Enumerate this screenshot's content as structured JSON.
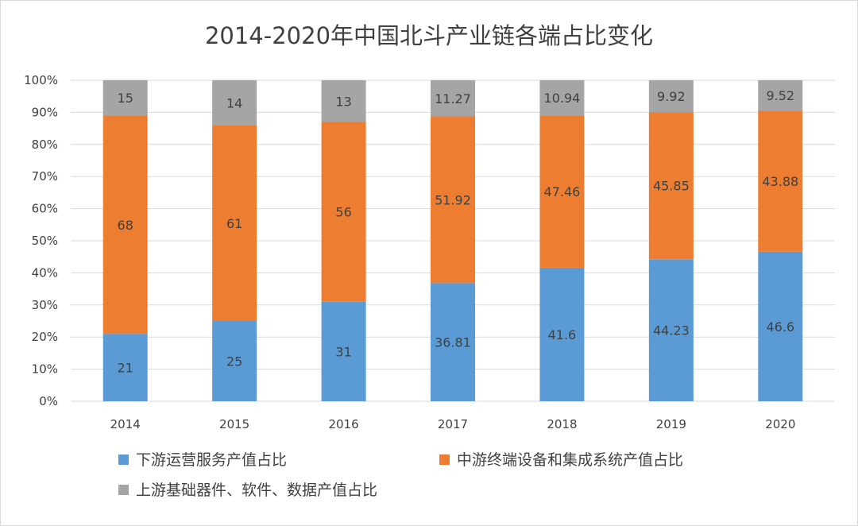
{
  "chart_data": {
    "type": "bar",
    "stacked": true,
    "title": "2014-2020年中国北斗产业链各端占比变化",
    "xlabel": "",
    "ylabel": "",
    "ylim": [
      0,
      100
    ],
    "y_ticks": [
      "0%",
      "10%",
      "20%",
      "30%",
      "40%",
      "50%",
      "60%",
      "70%",
      "80%",
      "90%",
      "100%"
    ],
    "categories": [
      "2014",
      "2015",
      "2016",
      "2017",
      "2018",
      "2019",
      "2020"
    ],
    "series": [
      {
        "name": "下游运营服务产值占比",
        "color": "#5b9bd5",
        "values": [
          21,
          25,
          31,
          36.81,
          41.6,
          44.23,
          46.6
        ],
        "labels": [
          "21",
          "25",
          "31",
          "36.81",
          "41.6",
          "44.23",
          "46.6"
        ]
      },
      {
        "name": "中游终端设备和集成系统产值占比",
        "color": "#ed7d31",
        "values": [
          68,
          61,
          56,
          51.92,
          47.46,
          45.85,
          43.88
        ],
        "labels": [
          "68",
          "61",
          "56",
          "51.92",
          "47.46",
          "45.85",
          "43.88"
        ]
      },
      {
        "name": "上游基础器件、软件、数据产值占比",
        "color": "#a5a5a5",
        "values": [
          15,
          14,
          13,
          11.27,
          10.94,
          9.92,
          9.52
        ],
        "labels": [
          "15",
          "14",
          "13",
          "11.27",
          "10.94",
          "9.92",
          "9.52"
        ]
      }
    ],
    "grid": true,
    "legend_position": "bottom",
    "gridline_color": "#d9d9d9",
    "text_color": "#404040"
  }
}
